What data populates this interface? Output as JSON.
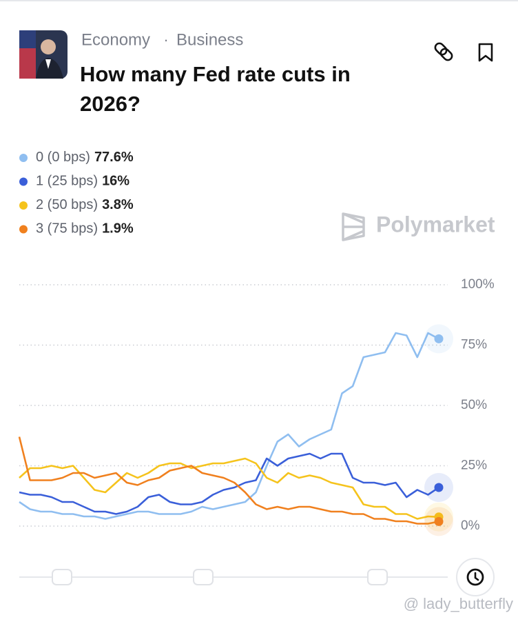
{
  "header": {
    "tags": [
      "Economy",
      "Business"
    ],
    "separator": "·",
    "title": "How many Fed rate cuts in 2026?"
  },
  "brand": "Polymarket",
  "watermark": "@ lady_butterfly",
  "chart_data": {
    "type": "line",
    "categories": [
      null,
      null,
      null,
      null,
      null,
      null,
      null,
      null,
      null,
      null,
      null,
      null,
      null,
      null,
      null,
      null,
      null,
      null,
      null,
      null,
      null,
      null,
      null,
      null,
      null,
      null,
      null,
      null,
      null,
      null,
      null,
      null,
      null,
      null,
      null,
      null,
      null,
      null,
      null,
      null
    ],
    "ylim": [
      0,
      100
    ],
    "yticks": [
      {
        "value": 0,
        "label": "0%"
      },
      {
        "value": 25,
        "label": "25%"
      },
      {
        "value": 50,
        "label": "50%"
      },
      {
        "value": 75,
        "label": "75%"
      },
      {
        "value": 100,
        "label": "100%"
      }
    ],
    "grid": true,
    "series": [
      {
        "name": "0 (0 bps)",
        "color": "#8fbef0",
        "value": 77.6,
        "value_label": "77.6%",
        "values": [
          10,
          7,
          6,
          6,
          5,
          5,
          4,
          4,
          3,
          4,
          5,
          6,
          6,
          5,
          5,
          5,
          6,
          8,
          7,
          8,
          9,
          10,
          14,
          25,
          35,
          38,
          33,
          36,
          38,
          40,
          55,
          58,
          70,
          71,
          72,
          80,
          79,
          70,
          80,
          77.6
        ]
      },
      {
        "name": "1 (25 bps)",
        "color": "#3a5fd9",
        "value": 16,
        "value_label": "16%",
        "values": [
          14,
          13,
          13,
          12,
          10,
          10,
          8,
          6,
          6,
          5,
          6,
          8,
          12,
          13,
          10,
          9,
          9,
          10,
          13,
          15,
          16,
          18,
          19,
          28,
          25,
          28,
          29,
          30,
          28,
          30,
          30,
          20,
          18,
          18,
          17,
          18,
          12,
          15,
          13,
          16
        ]
      },
      {
        "name": "2 (50 bps)",
        "color": "#f5c31c",
        "value": 3.8,
        "value_label": "3.8%",
        "values": [
          20,
          24,
          24,
          25,
          24,
          25,
          20,
          15,
          14,
          18,
          22,
          20,
          22,
          25,
          26,
          26,
          24,
          25,
          26,
          26,
          27,
          28,
          26,
          20,
          18,
          22,
          20,
          21,
          20,
          18,
          17,
          16,
          9,
          8,
          8,
          5,
          5,
          3,
          4,
          3.8
        ]
      },
      {
        "name": "3 (75 bps)",
        "color": "#f0801e",
        "value": 1.9,
        "value_label": "1.9%",
        "values": [
          37,
          19,
          19,
          19,
          20,
          22,
          22,
          20,
          21,
          22,
          18,
          17,
          19,
          20,
          23,
          24,
          25,
          22,
          21,
          20,
          18,
          14,
          9,
          7,
          8,
          7,
          8,
          8,
          7,
          6,
          6,
          5,
          5,
          3,
          3,
          2,
          2,
          1,
          1,
          1.9
        ]
      }
    ]
  }
}
